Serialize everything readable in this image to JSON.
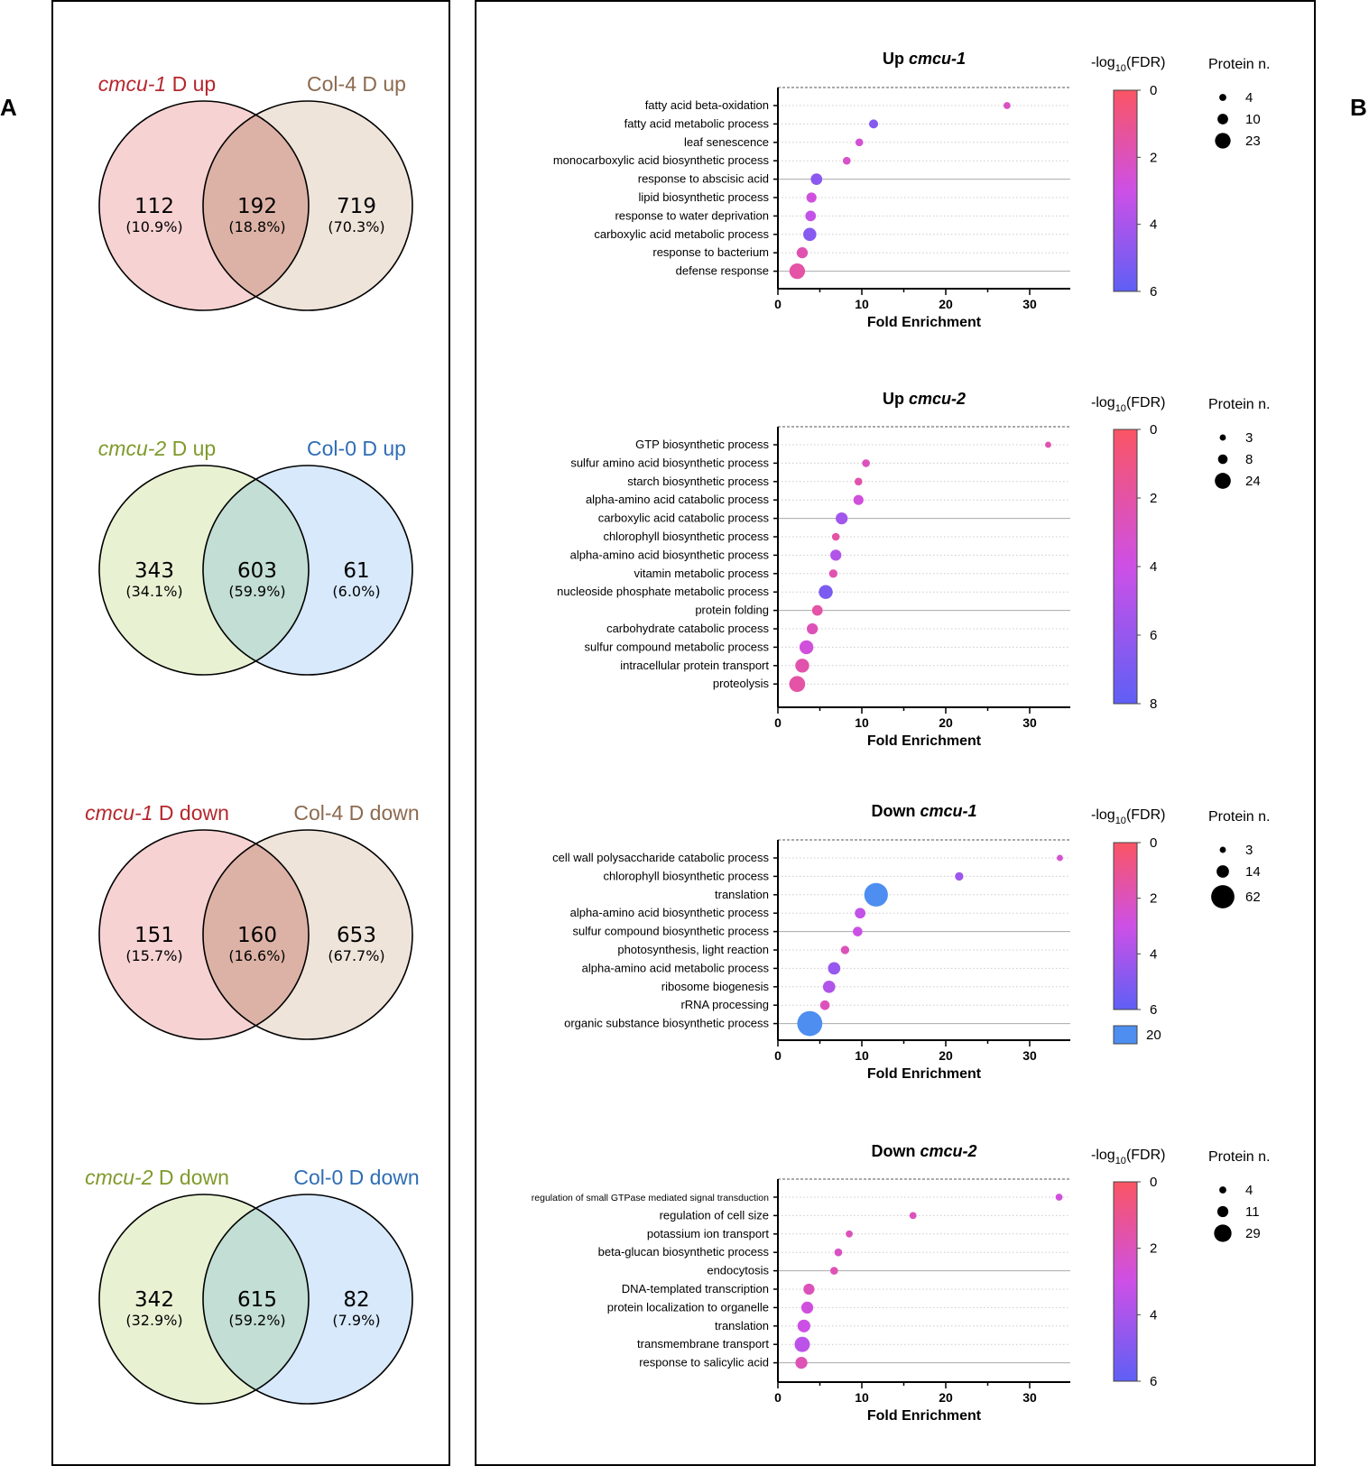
{
  "panel_labels": {
    "a": "A",
    "b": "B"
  },
  "venns": [
    {
      "left_italic": "cmcu-1",
      "left_suffix": " D up",
      "right_label": "Col-4 D up",
      "left_title_color": "#b5272d",
      "right_title_color": "#8c6a4f",
      "left_fill": "#f7d2d3",
      "right_fill": "#efe4da",
      "overlap_fill": "#ddb2a6",
      "left_count": "112",
      "left_pct": "(10.9%)",
      "overlap_count": "192",
      "overlap_pct": "(18.8%)",
      "right_count": "719",
      "right_pct": "(70.3%)"
    },
    {
      "left_italic": "cmcu-2",
      "left_suffix": " D up",
      "right_label": "Col-0 D up",
      "left_title_color": "#7f9a2c",
      "right_title_color": "#2f6db5",
      "left_fill": "#e8f2d3",
      "right_fill": "#d7e9fb",
      "overlap_fill": "#c3ded4",
      "left_count": "343",
      "left_pct": "(34.1%)",
      "overlap_count": "603",
      "overlap_pct": "(59.9%)",
      "right_count": "61",
      "right_pct": "(6.0%)"
    },
    {
      "left_italic": "cmcu-1",
      "left_suffix": " D down",
      "right_label": "Col-4 D down",
      "left_title_color": "#b5272d",
      "right_title_color": "#8c6a4f",
      "left_fill": "#f7d2d3",
      "right_fill": "#efe4da",
      "overlap_fill": "#ddb2a6",
      "left_count": "151",
      "left_pct": "(15.7%)",
      "overlap_count": "160",
      "overlap_pct": "(16.6%)",
      "right_count": "653",
      "right_pct": "(67.7%)"
    },
    {
      "left_italic": "cmcu-2",
      "left_suffix": " D down",
      "right_label": "Col-0 D down",
      "left_title_color": "#7f9a2c",
      "right_title_color": "#2f6db5",
      "left_fill": "#e8f2d3",
      "right_fill": "#d7e9fb",
      "overlap_fill": "#c3ded4",
      "left_count": "342",
      "left_pct": "(32.9%)",
      "overlap_count": "615",
      "overlap_pct": "(59.2%)",
      "right_count": "82",
      "right_pct": "(7.9%)"
    }
  ],
  "chart_data": [
    {
      "type": "scatter",
      "title_prefix": "Up ",
      "title_italic": "cmcu-1",
      "xlabel": "Fold Enrichment",
      "xlim": [
        0,
        35
      ],
      "xticks": [
        0,
        10,
        20,
        30
      ],
      "colorbar_label": "-log",
      "colorbar_sub": "10",
      "colorbar_suffix": "(FDR)",
      "colorbar_range": [
        0,
        6
      ],
      "colorbar_ticks": [
        0,
        2,
        4,
        6
      ],
      "colorbar_extra": null,
      "size_label": "Protein n.",
      "size_legend": [
        4,
        10,
        23
      ],
      "categories": [
        "fatty acid beta-oxidation",
        "fatty acid metabolic process",
        "leaf senescence",
        "monocarboxylic acid biosynthetic process",
        "response to abscisic acid",
        "lipid biosynthetic process",
        "response to water deprivation",
        "carboxylic acid metabolic process",
        "response to bacterium",
        "defense response"
      ],
      "fold_enrichment": [
        27.3,
        11.4,
        9.7,
        8.2,
        4.6,
        4.0,
        3.9,
        3.8,
        2.9,
        2.3
      ],
      "neg_log10_fdr": [
        2.2,
        5.0,
        2.6,
        2.3,
        4.8,
        2.8,
        3.3,
        4.9,
        1.8,
        1.5
      ],
      "protein_n": [
        4,
        7,
        5,
        5,
        12,
        9,
        10,
        16,
        11,
        23
      ],
      "solid_gridline_rows": [
        4,
        9
      ]
    },
    {
      "type": "scatter",
      "title_prefix": "Up ",
      "title_italic": "cmcu-2",
      "xlabel": "Fold Enrichment",
      "xlim": [
        0,
        35
      ],
      "xticks": [
        0,
        10,
        20,
        30
      ],
      "colorbar_label": "-log",
      "colorbar_sub": "10",
      "colorbar_suffix": "(FDR)",
      "colorbar_range": [
        0,
        8
      ],
      "colorbar_ticks": [
        0,
        2,
        4,
        6,
        8
      ],
      "colorbar_extra": null,
      "size_label": "Protein n.",
      "size_legend": [
        3,
        8,
        24
      ],
      "categories": [
        "GTP biosynthetic process",
        "sulfur amino acid biosynthetic process",
        "starch biosynthetic process",
        "alpha-amino acid catabolic process",
        "carboxylic acid catabolic process",
        "chlorophyll biosynthetic process",
        "alpha-amino acid biosynthetic process",
        "vitamin metabolic process",
        "nucleoside phosphate metabolic process",
        "protein folding",
        "carbohydrate catabolic process",
        "sulfur compound metabolic process",
        "intracellular protein transport",
        "proteolysis"
      ],
      "fold_enrichment": [
        32.2,
        10.5,
        9.6,
        9.6,
        7.6,
        6.9,
        6.9,
        6.6,
        5.7,
        4.7,
        4.1,
        3.4,
        2.9,
        2.3
      ],
      "neg_log10_fdr": [
        2.3,
        2.7,
        2.2,
        3.7,
        5.6,
        2.0,
        5.0,
        2.3,
        7.0,
        2.0,
        2.6,
        3.7,
        2.2,
        2.0
      ],
      "protein_n": [
        3,
        5,
        5,
        9,
        13,
        5,
        11,
        6,
        18,
        10,
        11,
        18,
        18,
        24
      ],
      "solid_gridline_rows": [
        4,
        9
      ]
    },
    {
      "type": "scatter",
      "title_prefix": "Down ",
      "title_italic": "cmcu-1",
      "xlabel": "Fold Enrichment",
      "xlim": [
        0,
        35
      ],
      "xticks": [
        0,
        10,
        20,
        30
      ],
      "colorbar_label": "-log",
      "colorbar_sub": "10",
      "colorbar_suffix": "(FDR)",
      "colorbar_range": [
        0,
        6
      ],
      "colorbar_ticks": [
        0,
        2,
        4,
        6
      ],
      "colorbar_extra": "20",
      "size_label": "Protein n.",
      "size_legend": [
        3,
        14,
        62
      ],
      "categories": [
        "cell wall polysaccharide catabolic process",
        "chlorophyll biosynthetic process",
        "translation",
        "alpha-amino acid biosynthetic process",
        "sulfur compound biosynthetic process",
        "photosynthesis, light reaction",
        "alpha-amino acid metabolic process",
        "ribosome biogenesis",
        "rRNA processing",
        "organic substance biosynthetic process"
      ],
      "fold_enrichment": [
        33.6,
        21.6,
        11.7,
        9.8,
        9.5,
        8.0,
        6.7,
        6.1,
        5.6,
        3.8
      ],
      "neg_log10_fdr": [
        2.5,
        4.3,
        20,
        3.3,
        3.0,
        2.0,
        4.5,
        3.8,
        2.0,
        20
      ],
      "protein_n": [
        3,
        6,
        55,
        10,
        8,
        6,
        14,
        14,
        8,
        62
      ],
      "solid_gridline_rows": [
        4,
        9
      ]
    },
    {
      "type": "scatter",
      "title_prefix": "Down ",
      "title_italic": "cmcu-2",
      "xlabel": "Fold Enrichment",
      "xlim": [
        0,
        35
      ],
      "xticks": [
        0,
        10,
        20,
        30
      ],
      "colorbar_label": "-log",
      "colorbar_sub": "10",
      "colorbar_suffix": "(FDR)",
      "colorbar_range": [
        0,
        6
      ],
      "colorbar_ticks": [
        0,
        2,
        4,
        6
      ],
      "colorbar_extra": null,
      "size_label": "Protein n.",
      "size_legend": [
        4,
        11,
        29
      ],
      "categories": [
        "regulation of small GTPase mediated signal transduction",
        "regulation of cell size",
        "potassium ion transport",
        "beta-glucan biosynthetic process",
        "endocytosis",
        "DNA-templated transcription",
        "protein localization to organelle",
        "translation",
        "transmembrane transport",
        "response to salicylic acid"
      ],
      "fold_enrichment": [
        33.5,
        16.1,
        8.5,
        7.2,
        6.7,
        3.7,
        3.5,
        3.1,
        2.9,
        2.8
      ],
      "neg_log10_fdr": [
        2.8,
        2.0,
        2.0,
        2.2,
        1.9,
        2.0,
        2.8,
        3.0,
        3.5,
        1.9
      ],
      "protein_n": [
        4,
        4,
        4,
        5,
        5,
        11,
        13,
        15,
        22,
        13
      ],
      "solid_gridline_rows": [
        4,
        9
      ],
      "small_label_rows": [
        0
      ]
    }
  ]
}
